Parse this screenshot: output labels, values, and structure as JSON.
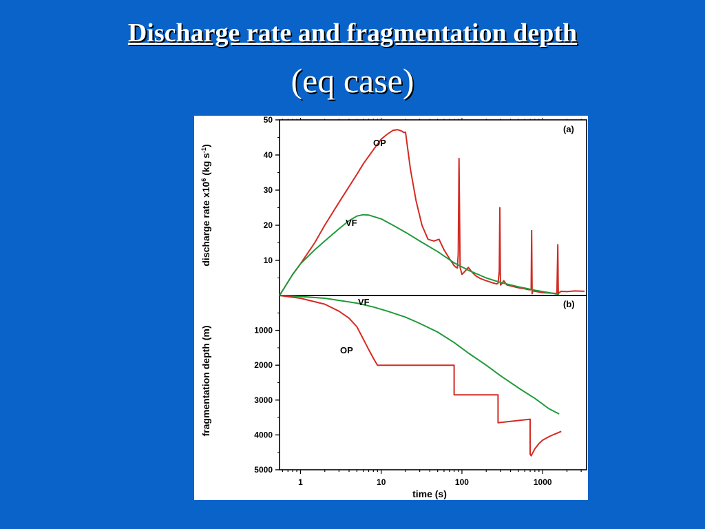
{
  "slide": {
    "title": "Discharge rate and fragmentation depth",
    "subtitle": "(eq case)"
  },
  "chart_data": [
    {
      "panel_label": "(a)",
      "type": "line",
      "ylabel": "discharge rate x10",
      "ylabel_exp": "6",
      "ylabel_unit": " (kg s",
      "ylabel_unit_exp": "-1",
      "ylabel_close": ")",
      "x_scale": "log",
      "xlim": [
        0.55,
        3500
      ],
      "ylim": [
        0,
        50
      ],
      "yticks": [
        10,
        20,
        30,
        40,
        50
      ],
      "series": [
        {
          "name": "OP",
          "color": "#d42a22",
          "x": [
            0.55,
            0.8,
            1,
            1.5,
            2,
            3,
            4,
            5,
            6,
            8,
            10,
            12,
            14,
            16,
            18,
            19,
            20,
            23,
            27,
            32,
            38,
            45,
            52,
            60,
            70,
            80,
            85,
            88,
            90,
            92,
            95,
            100,
            110,
            120,
            135,
            150,
            170,
            200,
            240,
            270,
            280,
            290,
            295,
            300,
            310,
            330,
            360,
            420,
            500,
            600,
            650,
            700,
            720,
            730,
            740,
            760,
            800,
            900,
            1000,
            1200,
            1400,
            1500,
            1540,
            1560,
            1600,
            1700,
            2000,
            2500,
            3300
          ],
          "y": [
            0,
            6,
            9,
            15,
            20,
            26.5,
            31,
            34.5,
            37.5,
            41.5,
            44.5,
            46,
            47,
            47.2,
            46.8,
            46.4,
            46.5,
            36,
            27,
            20,
            16,
            15.5,
            16,
            13,
            10.5,
            8.5,
            8,
            7.8,
            12,
            39,
            8,
            6,
            7,
            8,
            6.5,
            5.5,
            4.8,
            4.2,
            3.6,
            3.3,
            3.5,
            7,
            25,
            3,
            3.3,
            4.2,
            3,
            2.6,
            2.2,
            1.9,
            1.7,
            1.6,
            1.7,
            18.5,
            0.5,
            1.4,
            1.2,
            1.0,
            0.8,
            0.7,
            0.6,
            0.6,
            14.5,
            0.5,
            0.8,
            1.2,
            1.1,
            1.3,
            1.2
          ]
        },
        {
          "name": "VF",
          "color": "#1f9a3a",
          "x": [
            0.55,
            0.8,
            1,
            1.5,
            2,
            3,
            4,
            5,
            6,
            7,
            8,
            10,
            14,
            20,
            30,
            50,
            80,
            120,
            200,
            300,
            500,
            800,
            1200,
            1600
          ],
          "y": [
            0,
            6,
            9,
            13,
            15.5,
            19,
            21.3,
            22.6,
            23,
            22.9,
            22.5,
            21.8,
            20,
            18,
            15.5,
            12.5,
            9.3,
            7.2,
            5,
            3.7,
            2.5,
            1.5,
            0.8,
            0.3
          ]
        }
      ]
    },
    {
      "panel_label": "(b)",
      "type": "line",
      "ylabel": "fragmentation depth (m)",
      "xlabel": "time (s)",
      "x_scale": "log",
      "xlim": [
        0.55,
        3500
      ],
      "ylim": [
        0,
        5000
      ],
      "y_inverted": true,
      "yticks": [
        1000,
        2000,
        3000,
        4000,
        5000
      ],
      "xticks": [
        1,
        10,
        100,
        1000
      ],
      "series": [
        {
          "name": "VF",
          "color": "#1f9a3a",
          "x": [
            0.55,
            1,
            2,
            3,
            5,
            8,
            12,
            20,
            30,
            50,
            80,
            120,
            200,
            300,
            500,
            800,
            1200,
            1600
          ],
          "y": [
            0,
            30,
            80,
            140,
            220,
            330,
            450,
            620,
            800,
            1050,
            1350,
            1650,
            2000,
            2300,
            2650,
            2950,
            3250,
            3400
          ]
        },
        {
          "name": "OP",
          "color": "#d42a22",
          "x": [
            0.55,
            1,
            2,
            3,
            4,
            5,
            6,
            7,
            8,
            9,
            80,
            80,
            280,
            280,
            700,
            700,
            720,
            760,
            800,
            900,
            1000,
            1200,
            1400,
            1700
          ],
          "y": [
            0,
            80,
            250,
            450,
            650,
            900,
            1250,
            1550,
            1800,
            2000,
            2000,
            2850,
            2850,
            3650,
            3550,
            4550,
            4600,
            4500,
            4400,
            4250,
            4150,
            4050,
            3980,
            3900
          ]
        }
      ]
    }
  ]
}
